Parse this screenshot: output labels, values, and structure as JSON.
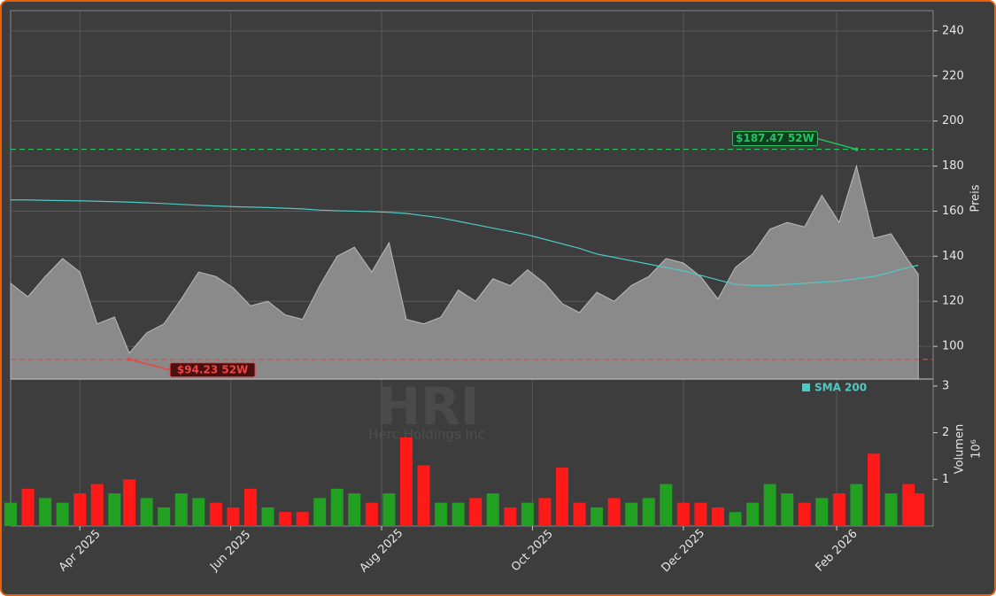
{
  "chart_data": {
    "type": "candle-area",
    "ticker": "HRI",
    "company": "Herc Holdings Inc",
    "ylabel": "Preis",
    "volume_label": "Volumen",
    "volume_exponent": "10⁶",
    "x": [
      "2025-03-04",
      "2025-03-11",
      "2025-03-18",
      "2025-03-25",
      "2025-04-01",
      "2025-04-08",
      "2025-04-15",
      "2025-04-21",
      "2025-04-28",
      "2025-05-05",
      "2025-05-12",
      "2025-05-19",
      "2025-05-26",
      "2025-06-02",
      "2025-06-09",
      "2025-06-16",
      "2025-06-23",
      "2025-06-30",
      "2025-07-07",
      "2025-07-14",
      "2025-07-21",
      "2025-07-28",
      "2025-08-04",
      "2025-08-11",
      "2025-08-18",
      "2025-08-25",
      "2025-09-01",
      "2025-09-08",
      "2025-09-15",
      "2025-09-22",
      "2025-09-29",
      "2025-10-06",
      "2025-10-13",
      "2025-10-20",
      "2025-10-27",
      "2025-11-03",
      "2025-11-10",
      "2025-11-17",
      "2025-11-24",
      "2025-12-01",
      "2025-12-08",
      "2025-12-15",
      "2025-12-22",
      "2025-12-29",
      "2026-01-05",
      "2026-01-12",
      "2026-01-19",
      "2026-01-26",
      "2026-02-02",
      "2026-02-09",
      "2026-02-16",
      "2026-02-23",
      "2026-03-02",
      "2026-03-06"
    ],
    "close": [
      128,
      122,
      131,
      139,
      133,
      110,
      113,
      97,
      106,
      110,
      121,
      133,
      131,
      126,
      118,
      120,
      114,
      112,
      127,
      140,
      144,
      133,
      146,
      112,
      110,
      113,
      125,
      120,
      130,
      127,
      134,
      128,
      119,
      115,
      124,
      120,
      127,
      131,
      139,
      137,
      131,
      121,
      135,
      141,
      152,
      155,
      153,
      167,
      155,
      180,
      148,
      150,
      138,
      132
    ],
    "area_color": "#8a8a8a",
    "sma": {
      "name": "SMA 200",
      "color": "#4fc9c4",
      "values": [
        165,
        165,
        164.8,
        164.7,
        164.6,
        164.4,
        164.2,
        164,
        163.7,
        163.4,
        163,
        162.6,
        162.3,
        162,
        161.8,
        161.6,
        161.3,
        161,
        160.5,
        160.2,
        160,
        159.8,
        159.5,
        159,
        158,
        157,
        155.5,
        154,
        152.5,
        151,
        149.5,
        147.5,
        145.5,
        143.5,
        141,
        139.5,
        138,
        136.5,
        135,
        133.5,
        131.5,
        129.5,
        127.5,
        127,
        127,
        127.5,
        128,
        128.5,
        129,
        130,
        131,
        133,
        135,
        136
      ]
    },
    "volume": [
      0.5,
      0.8,
      0.6,
      0.5,
      0.7,
      0.9,
      0.7,
      1.0,
      0.6,
      0.4,
      0.7,
      0.6,
      0.5,
      0.4,
      0.8,
      0.4,
      0.3,
      0.3,
      0.6,
      0.8,
      0.7,
      0.5,
      0.7,
      1.9,
      1.3,
      0.5,
      0.5,
      0.6,
      0.7,
      0.4,
      0.5,
      0.6,
      1.25,
      0.5,
      0.4,
      0.6,
      0.5,
      0.6,
      0.9,
      0.5,
      0.5,
      0.4,
      0.3,
      0.5,
      0.9,
      0.7,
      0.5,
      0.6,
      0.7,
      0.9,
      1.55,
      0.7,
      0.9,
      0.7
    ],
    "up_color": "#22a022",
    "down_color": "#ff1a1a",
    "high": {
      "label": "$187.47 52W",
      "value": 187.47,
      "x": "2026-02-09",
      "color": "#22c55e"
    },
    "low": {
      "label": "$94.23 52W",
      "value": 94.23,
      "x": "2025-04-21",
      "color": "#ef4444"
    },
    "xlim": [
      "2025-03-04",
      "2026-03-12"
    ],
    "xticks": [
      {
        "value": "2025-04-01",
        "label": "Apr 2025"
      },
      {
        "value": "2025-06-01",
        "label": "Jun 2025"
      },
      {
        "value": "2025-08-01",
        "label": "Aug 2025"
      },
      {
        "value": "2025-10-01",
        "label": "Oct 2025"
      },
      {
        "value": "2025-12-01",
        "label": "Dec 2025"
      },
      {
        "value": "2026-02-01",
        "label": "Feb 2026"
      }
    ],
    "ylim": [
      85.5,
      249
    ],
    "yticks": [
      100,
      120,
      140,
      160,
      180,
      200,
      220,
      240
    ],
    "vlim": [
      0,
      3.15
    ],
    "vticks": [
      1,
      2,
      3
    ],
    "grid": true
  }
}
